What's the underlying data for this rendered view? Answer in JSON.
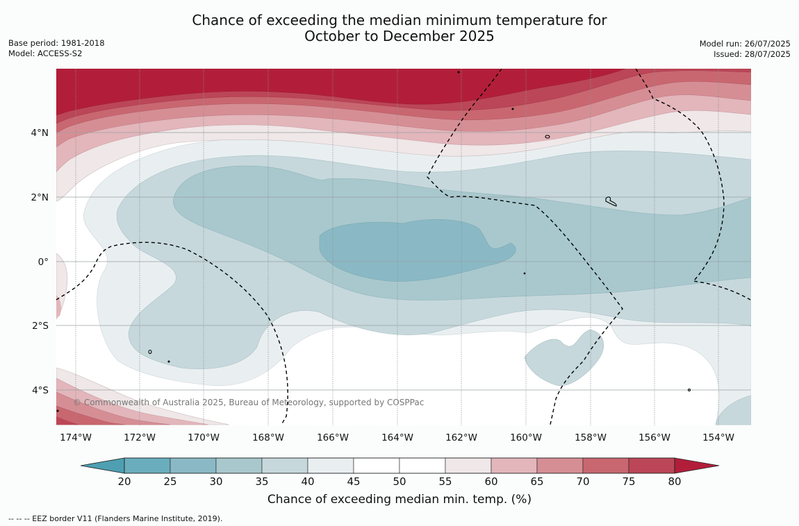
{
  "header": {
    "title_line1": "Chance of exceeding the median minimum temperature for",
    "title_line2": "October to December 2025",
    "base_period": "Base period: 1981-2018",
    "model": "Model: ACCESS-S2",
    "model_run": "Model run: 26/07/2025",
    "issued": "Issued: 28/07/2025"
  },
  "map": {
    "lat_labels": [
      "4°N",
      "2°N",
      "0°",
      "2°S",
      "4°S"
    ],
    "lon_labels": [
      "174°W",
      "172°W",
      "170°W",
      "168°W",
      "166°W",
      "164°W",
      "162°W",
      "160°W",
      "158°W",
      "156°W",
      "154°W"
    ],
    "copyright": "© Commonwealth of Australia 2025, Bureau of Meteorology, supported by COSPPac"
  },
  "colorbar": {
    "ticks": [
      "20",
      "25",
      "30",
      "35",
      "40",
      "45",
      "50",
      "55",
      "60",
      "65",
      "70",
      "75",
      "80"
    ],
    "colors": [
      "#6aaebd",
      "#8ab9c5",
      "#a8c8cd",
      "#c6d8dc",
      "#e9eff1",
      "#ffffff",
      "#ffffff",
      "#efe7e8",
      "#e2b6bb",
      "#d68e95",
      "#c96770",
      "#bb4657"
    ],
    "under_color": "#4d9fb1",
    "over_color": "#b21e3a",
    "label": "Chance of exceeding median min. temp. (%)"
  },
  "footer": {
    "legend_note": "--  --  -- EEZ border V11 (Flanders Marine Institute, 2019)."
  }
}
